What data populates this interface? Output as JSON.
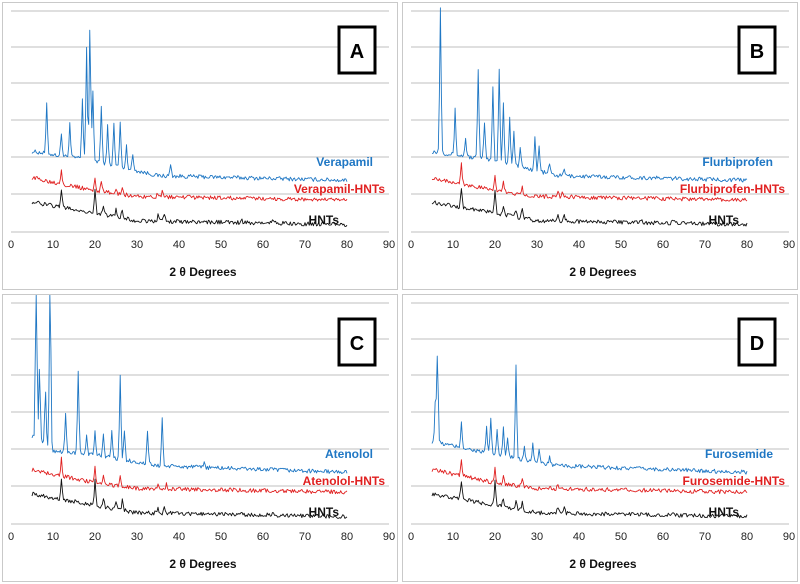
{
  "colors": {
    "drug": "#1f77c4",
    "composite": "#e02020",
    "hnt": "#111111",
    "grid": "#bfbfbf"
  },
  "chart_data": [
    {
      "type": "line",
      "panel": "A",
      "xlabel": "2 θ Degrees",
      "xlim": [
        0,
        90
      ],
      "xticks": [
        0,
        10,
        20,
        30,
        40,
        50,
        60,
        70,
        80,
        90
      ],
      "series": [
        {
          "name": "Verapamil",
          "role": "drug",
          "baseline": [
            [
              5,
              2.15
            ],
            [
              20,
              1.9
            ],
            [
              35,
              1.5
            ],
            [
              80,
              1.38
            ]
          ],
          "peaks": [
            [
              8.5,
              1.3
            ],
            [
              12,
              0.6
            ],
            [
              14,
              0.9
            ],
            [
              17,
              1.6
            ],
            [
              18,
              3.0
            ],
            [
              18.8,
              3.6
            ],
            [
              19.5,
              1.8
            ],
            [
              21.5,
              1.5
            ],
            [
              23,
              1.0
            ],
            [
              24.5,
              1.1
            ],
            [
              26,
              1.2
            ],
            [
              27.5,
              0.6
            ],
            [
              29,
              0.4
            ],
            [
              38,
              0.3
            ]
          ]
        },
        {
          "name": "Verapamil-HNTs",
          "role": "composite",
          "baseline": [
            [
              5,
              1.45
            ],
            [
              20,
              1.1
            ],
            [
              30,
              0.95
            ],
            [
              80,
              0.85
            ]
          ],
          "peaks": [
            [
              12,
              0.4
            ],
            [
              20,
              0.35
            ],
            [
              21.5,
              0.25
            ],
            [
              25,
              0.15
            ],
            [
              26.5,
              0.2
            ],
            [
              35,
              0.1
            ],
            [
              36,
              0.12
            ]
          ]
        },
        {
          "name": "HNTs",
          "role": "hnt",
          "baseline": [
            [
              5,
              0.8
            ],
            [
              20,
              0.5
            ],
            [
              30,
              0.3
            ],
            [
              80,
              0.2
            ]
          ],
          "peaks": [
            [
              12,
              0.5
            ],
            [
              20,
              0.65
            ],
            [
              22,
              0.25
            ],
            [
              25,
              0.2
            ],
            [
              26.5,
              0.25
            ],
            [
              35,
              0.15
            ],
            [
              36.5,
              0.18
            ],
            [
              55,
              0.05
            ],
            [
              62.5,
              0.1
            ]
          ]
        }
      ]
    },
    {
      "type": "line",
      "panel": "B",
      "xlabel": "2 θ Degrees",
      "xlim": [
        0,
        90
      ],
      "xticks": [
        0,
        10,
        20,
        30,
        40,
        50,
        60,
        70,
        80,
        90
      ],
      "series": [
        {
          "name": "Flurbiprofen",
          "role": "drug",
          "baseline": [
            [
              5,
              2.15
            ],
            [
              20,
              1.9
            ],
            [
              35,
              1.5
            ],
            [
              80,
              1.38
            ]
          ],
          "peaks": [
            [
              7,
              3.9
            ],
            [
              10.5,
              1.2
            ],
            [
              13,
              0.5
            ],
            [
              16,
              2.4
            ],
            [
              17.5,
              1.0
            ],
            [
              19.5,
              2.0
            ],
            [
              21,
              2.5
            ],
            [
              22,
              1.6
            ],
            [
              23.5,
              1.3
            ],
            [
              24.5,
              0.9
            ],
            [
              26,
              0.5
            ],
            [
              29.5,
              0.9
            ],
            [
              30.5,
              0.7
            ],
            [
              33,
              0.3
            ],
            [
              36.5,
              0.2
            ]
          ]
        },
        {
          "name": "Flurbiprofen-HNTs",
          "role": "composite",
          "baseline": [
            [
              5,
              1.45
            ],
            [
              20,
              1.1
            ],
            [
              30,
              0.95
            ],
            [
              80,
              0.85
            ]
          ],
          "peaks": [
            [
              12,
              0.55
            ],
            [
              20,
              0.45
            ],
            [
              22,
              0.25
            ],
            [
              26.5,
              0.2
            ],
            [
              35,
              0.1
            ],
            [
              36,
              0.12
            ]
          ]
        },
        {
          "name": "HNTs",
          "role": "hnt",
          "baseline": [
            [
              5,
              0.8
            ],
            [
              20,
              0.5
            ],
            [
              30,
              0.3
            ],
            [
              80,
              0.2
            ]
          ],
          "peaks": [
            [
              12,
              0.5
            ],
            [
              20,
              0.65
            ],
            [
              22,
              0.25
            ],
            [
              25,
              0.2
            ],
            [
              26.5,
              0.25
            ],
            [
              35,
              0.15
            ],
            [
              36.5,
              0.18
            ],
            [
              55,
              0.05
            ],
            [
              62.5,
              0.1
            ]
          ]
        }
      ]
    },
    {
      "type": "line",
      "panel": "C",
      "xlabel": "2 θ Degrees",
      "xlim": [
        0,
        90
      ],
      "xticks": [
        0,
        10,
        20,
        30,
        40,
        50,
        60,
        70,
        80,
        90
      ],
      "series": [
        {
          "name": "Atenolol",
          "role": "drug",
          "baseline": [
            [
              5,
              2.35
            ],
            [
              10,
              1.95
            ],
            [
              20,
              1.85
            ],
            [
              35,
              1.55
            ],
            [
              80,
              1.38
            ]
          ],
          "peaks": [
            [
              6,
              5.0
            ],
            [
              6.8,
              2.0
            ],
            [
              8.2,
              1.5
            ],
            [
              9.3,
              5.0
            ],
            [
              13,
              1.0
            ],
            [
              16,
              2.2
            ],
            [
              18,
              0.5
            ],
            [
              20,
              0.6
            ],
            [
              22,
              0.6
            ],
            [
              24,
              0.7
            ],
            [
              26,
              2.2
            ],
            [
              27,
              0.8
            ],
            [
              32.5,
              0.9
            ],
            [
              36,
              1.3
            ],
            [
              46,
              0.15
            ]
          ]
        },
        {
          "name": "Atenolol-HNTs",
          "role": "composite",
          "baseline": [
            [
              5,
              1.45
            ],
            [
              20,
              1.1
            ],
            [
              30,
              0.95
            ],
            [
              80,
              0.85
            ]
          ],
          "peaks": [
            [
              12,
              0.45
            ],
            [
              20,
              0.4
            ],
            [
              22,
              0.2
            ],
            [
              26,
              0.25
            ],
            [
              35,
              0.1
            ],
            [
              37,
              0.12
            ]
          ]
        },
        {
          "name": "HNTs",
          "role": "hnt",
          "baseline": [
            [
              5,
              0.8
            ],
            [
              20,
              0.5
            ],
            [
              30,
              0.3
            ],
            [
              80,
              0.2
            ]
          ],
          "peaks": [
            [
              12,
              0.5
            ],
            [
              20,
              0.65
            ],
            [
              22,
              0.25
            ],
            [
              25,
              0.2
            ],
            [
              26.5,
              0.25
            ],
            [
              35,
              0.15
            ],
            [
              36.5,
              0.18
            ],
            [
              55,
              0.05
            ],
            [
              62.5,
              0.1
            ]
          ]
        }
      ]
    },
    {
      "type": "line",
      "panel": "D",
      "xlabel": "2 θ Degrees",
      "xlim": [
        0,
        90
      ],
      "xticks": [
        0,
        10,
        20,
        30,
        40,
        50,
        60,
        70,
        80,
        90
      ],
      "series": [
        {
          "name": "Furosemide",
          "role": "drug",
          "baseline": [
            [
              5,
              2.2
            ],
            [
              20,
              1.85
            ],
            [
              35,
              1.55
            ],
            [
              80,
              1.38
            ]
          ],
          "peaks": [
            [
              5.8,
              1.1
            ],
            [
              6.3,
              2.3
            ],
            [
              12,
              0.7
            ],
            [
              18,
              0.7
            ],
            [
              19,
              0.9
            ],
            [
              20.5,
              0.7
            ],
            [
              22,
              0.8
            ],
            [
              23,
              0.5
            ],
            [
              25,
              2.5
            ],
            [
              27,
              0.4
            ],
            [
              29,
              0.5
            ],
            [
              30.5,
              0.3
            ],
            [
              33,
              0.2
            ]
          ]
        },
        {
          "name": "Furosemide-HNTs",
          "role": "composite",
          "baseline": [
            [
              5,
              1.45
            ],
            [
              20,
              1.1
            ],
            [
              30,
              0.95
            ],
            [
              80,
              0.85
            ]
          ],
          "peaks": [
            [
              12,
              0.45
            ],
            [
              20,
              0.4
            ],
            [
              22,
              0.2
            ],
            [
              26.5,
              0.2
            ],
            [
              35,
              0.1
            ]
          ]
        },
        {
          "name": "HNTs",
          "role": "hnt",
          "baseline": [
            [
              5,
              0.8
            ],
            [
              20,
              0.5
            ],
            [
              30,
              0.3
            ],
            [
              80,
              0.2
            ]
          ],
          "peaks": [
            [
              12,
              0.5
            ],
            [
              20,
              0.65
            ],
            [
              22,
              0.25
            ],
            [
              25,
              0.2
            ],
            [
              26.5,
              0.25
            ],
            [
              35,
              0.15
            ],
            [
              36.5,
              0.18
            ],
            [
              55,
              0.05
            ],
            [
              62.5,
              0.1
            ]
          ]
        }
      ]
    }
  ]
}
